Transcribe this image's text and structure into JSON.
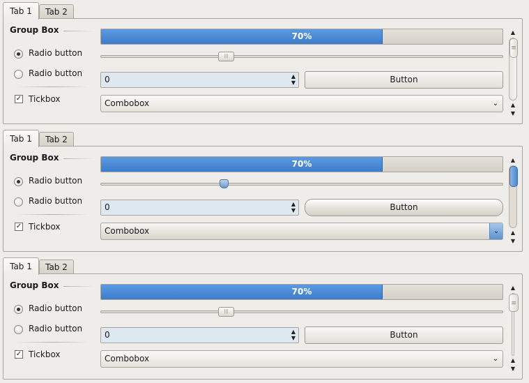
{
  "panels": [
    {
      "tabs": [
        {
          "label": "Tab 1",
          "mnemonic": "T"
        },
        {
          "label": "Tab 2",
          "mnemonic": "2"
        }
      ],
      "group_box_title": "Group Box",
      "radio1": {
        "label": "Radio button",
        "checked": true
      },
      "radio2": {
        "label": "Radio button",
        "checked": false
      },
      "tickbox": {
        "label": "Tickbox",
        "checked": true
      },
      "progress": {
        "value": 70,
        "text": "70%"
      },
      "slider": {
        "value": 0.31
      },
      "spinbox": {
        "value": "0"
      },
      "button": {
        "label": "Button"
      },
      "combobox": {
        "value": "Combobox"
      }
    },
    {
      "tabs": [
        {
          "label": "Tab 1",
          "mnemonic": "T"
        },
        {
          "label": "Tab 2",
          "mnemonic": "2"
        }
      ],
      "group_box_title": "Group Box",
      "radio1": {
        "label": "Radio button",
        "checked": true
      },
      "radio2": {
        "label": "Radio button",
        "checked": false
      },
      "tickbox": {
        "label": "Tickbox",
        "checked": true
      },
      "progress": {
        "value": 70,
        "text": "70%"
      },
      "slider": {
        "value": 0.31
      },
      "spinbox": {
        "value": "0"
      },
      "button": {
        "label": "Button"
      },
      "combobox": {
        "value": "Combobox"
      }
    },
    {
      "tabs": [
        {
          "label": "Tab 1",
          "mnemonic": "T"
        },
        {
          "label": "Tab 2",
          "mnemonic": "2"
        }
      ],
      "group_box_title": "Group Box",
      "radio1": {
        "label": "Radio button",
        "checked": true
      },
      "radio2": {
        "label": "Radio button",
        "checked": false
      },
      "tickbox": {
        "label": "Tickbox",
        "checked": true
      },
      "progress": {
        "value": 70,
        "text": "70%"
      },
      "slider": {
        "value": 0.31
      },
      "spinbox": {
        "value": "0"
      },
      "button": {
        "label": "Button"
      },
      "combobox": {
        "value": "Combobox"
      }
    }
  ],
  "icons": {
    "tick": "checkmark-icon",
    "spin_arrows": "up-down-arrows-icon",
    "combo_arrow": "chevron-down-icon",
    "scroll_up": "chevron-up-icon",
    "scroll_down": "chevron-down-icon"
  },
  "colors": {
    "progress_fill": "#3d7ccc",
    "spinbox_bg": "#dde8f1",
    "background": "#efede9"
  }
}
